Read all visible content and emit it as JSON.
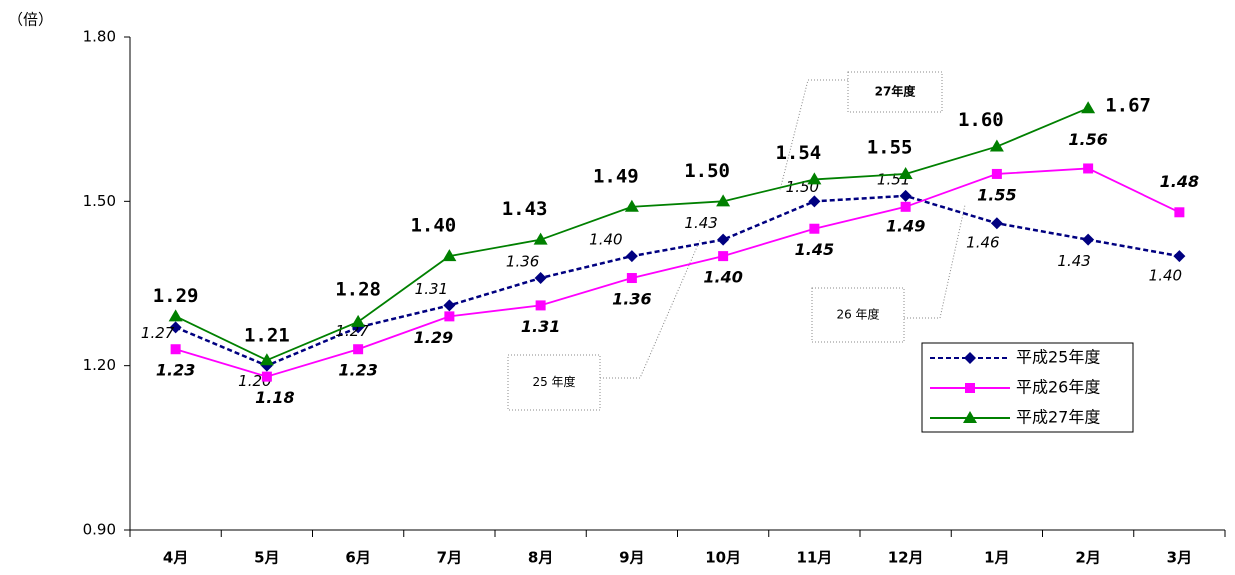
{
  "chart_data": {
    "type": "line",
    "y_unit_label": "（倍）",
    "categories": [
      "4月",
      "5月",
      "6月",
      "7月",
      "8月",
      "9月",
      "10月",
      "11月",
      "12月",
      "1月",
      "2月",
      "3月"
    ],
    "ylim": [
      0.9,
      1.8
    ],
    "yticks": [
      {
        "value": 0.9,
        "label": "0.90"
      },
      {
        "value": 1.2,
        "label": "1.20"
      },
      {
        "value": 1.5,
        "label": "1.50"
      },
      {
        "value": 1.8,
        "label": "1.80"
      }
    ],
    "legend": "lower right",
    "series": [
      {
        "name": "平成25年度",
        "color": "#000080",
        "marker": "diamond",
        "dashed": true,
        "values": [
          1.27,
          1.2,
          1.27,
          1.31,
          1.36,
          1.4,
          1.43,
          1.5,
          1.51,
          1.46,
          1.43,
          1.4
        ],
        "value_labels": [
          "1.27",
          "1.20",
          "1.27",
          "1.31",
          "1.36",
          "1.40",
          "1.43",
          "1.50",
          "1.51",
          "1.46",
          "1.43",
          "1.40"
        ]
      },
      {
        "name": "平成26年度",
        "color": "#ff00ff",
        "marker": "square",
        "dashed": false,
        "values": [
          1.23,
          1.18,
          1.23,
          1.29,
          1.31,
          1.36,
          1.4,
          1.45,
          1.49,
          1.55,
          1.56,
          1.48
        ],
        "value_labels": [
          "1.23",
          "1.18",
          "1.23",
          "1.29",
          "1.31",
          "1.36",
          "1.40",
          "1.45",
          "1.49",
          "1.55",
          "1.56",
          "1.48"
        ]
      },
      {
        "name": "平成27年度",
        "color": "#008000",
        "marker": "triangle",
        "dashed": false,
        "values": [
          1.29,
          1.21,
          1.28,
          1.4,
          1.43,
          1.49,
          1.5,
          1.54,
          1.55,
          1.6,
          1.67,
          null
        ],
        "value_labels": [
          "1.29",
          "1.21",
          "1.28",
          "1.40",
          "1.43",
          "1.49",
          "1.50",
          "1.54",
          "1.55",
          "1.60",
          "1.67",
          null
        ]
      }
    ],
    "annotations": [
      "27年度",
      "26 年度",
      "25 年度"
    ]
  }
}
